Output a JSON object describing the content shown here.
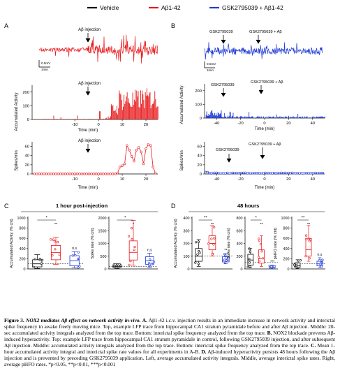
{
  "legend": [
    {
      "label": "Vehicle",
      "color": "#000000"
    },
    {
      "label": "Aβ1-42",
      "color": "#e8191c"
    },
    {
      "label": "GSK2795039 + Aβ1-42",
      "color": "#1f3ad6"
    }
  ],
  "colors": {
    "vehicle": "#000000",
    "abeta": "#e8191c",
    "gsk": "#1f3ad6"
  },
  "panels": {
    "a_label": "A",
    "b_label": "B",
    "c_label": "C",
    "d_label": "D",
    "a_top_annotation": "Aβ injection",
    "a_mid_annotation": "Aβ injection",
    "a_bottom_annotation": "Aβ injection",
    "b_top_annotation_1": "GSK2795039",
    "b_top_annotation_2": "GSK2795039 + Aβ",
    "b_mid_annotation_1": "GSK2795039",
    "b_mid_annotation_2": "GSK2795039 + Aβ",
    "b_bottom_annotation_1": "GSK2795039",
    "b_bottom_annotation_2": "GSK2795039 + Aβ",
    "scale_mv": "0.5mV",
    "scale_time": "1min",
    "ylabel_accum": "Accumulated Activity",
    "ylabel_spikes": "Spikes/min",
    "xlabel_time": "Time (min)",
    "c_title": "1 hour post-injection",
    "d_title": "48 hours",
    "c_ylabel_1": "Accumulated Activity (% cnt)",
    "c_ylabel_2": "Spike rate (% cnt)",
    "d_ylabel_1": "Accumulated Activity (% cnt)",
    "d_ylabel_2": "Spike rate (% cnt)",
    "d_ylabel_3": "pHFO rate (% cnt)"
  },
  "chart_data": [
    {
      "id": "A-mid",
      "type": "bar",
      "ylabel": "Accumulated Activity",
      "xlabel": "Time (min)",
      "xticks": [
        "-10",
        "0",
        "10",
        "20"
      ],
      "yticks": [
        "0",
        "100",
        "200"
      ],
      "ylim": [
        0,
        260
      ],
      "xlim": [
        -28,
        25
      ],
      "series_color": "#e8191c"
    },
    {
      "id": "A-bottom",
      "type": "line",
      "ylabel": "Spikes/min",
      "xlabel": "Time (min)",
      "xticks": [
        "-10",
        "0",
        "10",
        "20"
      ],
      "yticks": [
        "0",
        "20",
        "40",
        "60"
      ],
      "ylim": [
        0,
        70
      ],
      "xlim": [
        -28,
        25
      ],
      "x": [
        -27,
        -26,
        -25,
        -24,
        -23,
        -22,
        -21,
        -20,
        -19,
        -18,
        -17,
        -16,
        -15,
        -14,
        -13,
        -12,
        -11,
        -10,
        -9,
        -8,
        -7,
        -6,
        -5,
        -4,
        -3,
        -2,
        -1,
        0,
        1,
        2,
        3,
        4,
        5,
        6,
        7,
        8,
        9,
        10,
        11,
        12,
        13,
        14,
        15,
        16,
        17,
        18,
        19,
        20,
        21,
        22,
        23,
        24
      ],
      "y": [
        0,
        0,
        0,
        0,
        0,
        0,
        0,
        0,
        0,
        0,
        0,
        0,
        0,
        0,
        0,
        0,
        0,
        0,
        0,
        0,
        0,
        0,
        0,
        0,
        0,
        0,
        0,
        0,
        0,
        0,
        0,
        0,
        0,
        0,
        0,
        2,
        15,
        18,
        22,
        62,
        52,
        38,
        28,
        52,
        58,
        48,
        22,
        55,
        64,
        62,
        15,
        2
      ]
    },
    {
      "id": "B-mid",
      "type": "bar",
      "ylabel": "Accumulated Activity",
      "xlabel": "Time (min)",
      "xticks": [
        "-40",
        "-20",
        "0",
        "20",
        "40"
      ],
      "yticks": [
        "0",
        "100",
        "200"
      ],
      "ylim": [
        0,
        260
      ],
      "xlim": [
        -50,
        50
      ],
      "series_color": "#1f3ad6"
    },
    {
      "id": "B-bottom",
      "type": "line",
      "ylabel": "Spikes/min",
      "xlabel": "Time (min)",
      "xticks": [
        "-40",
        "-20",
        "0",
        "20",
        "40"
      ],
      "yticks": [
        "0",
        "20",
        "40",
        "60"
      ],
      "ylim": [
        0,
        70
      ],
      "xlim": [
        -50,
        50
      ]
    },
    {
      "id": "C-1",
      "type": "box",
      "ylabel": "Accumulated Activity (% cnt)",
      "yticks": [
        "0",
        "200",
        "400",
        "600",
        "800",
        "1000"
      ],
      "ylim": [
        0,
        1000
      ],
      "groups": [
        {
          "name": "Vehicle",
          "median": 100,
          "q1": 40,
          "q3": 180,
          "min": 10,
          "max": 280
        },
        {
          "name": "Aβ1-42",
          "median": 320,
          "q1": 180,
          "q3": 460,
          "min": 90,
          "max": 620
        },
        {
          "name": "GSK2795039 + Aβ1-42",
          "median": 160,
          "q1": 60,
          "q3": 260,
          "min": 20,
          "max": 340
        }
      ],
      "significance": [
        "**",
        "n.s",
        "*"
      ]
    },
    {
      "id": "C-2",
      "type": "box",
      "ylabel": "Spike rate (% cnt)",
      "yticks": [
        "0",
        "500",
        "1000",
        "1500",
        "2000"
      ],
      "ylim": [
        0,
        2000
      ],
      "groups": [
        {
          "name": "Vehicle",
          "median": 100,
          "q1": 60,
          "q3": 150,
          "min": 20,
          "max": 200
        },
        {
          "name": "Aβ1-42",
          "median": 650,
          "q1": 350,
          "q3": 1100,
          "min": 150,
          "max": 1900
        },
        {
          "name": "GSK2795039 + Aβ1-42",
          "median": 320,
          "q1": 180,
          "q3": 480,
          "min": 60,
          "max": 620
        }
      ],
      "significance": [
        "*",
        "n.s",
        "*"
      ]
    },
    {
      "id": "D-1",
      "type": "box",
      "ylabel": "Accumulated Activity (% cnt)",
      "yticks": [
        "0",
        "100",
        "200",
        "300",
        "400"
      ],
      "ylim": [
        0,
        400
      ],
      "groups": [
        {
          "name": "Vehicle",
          "median": 100,
          "q1": 60,
          "q3": 160,
          "min": 20,
          "max": 230
        },
        {
          "name": "Aβ1-42",
          "median": 200,
          "q1": 150,
          "q3": 260,
          "min": 100,
          "max": 340
        },
        {
          "name": "GSK2795039 + Aβ1-42",
          "median": 70,
          "q1": 55,
          "q3": 95,
          "min": 40,
          "max": 120
        }
      ],
      "significance": [
        "**",
        "**",
        "**"
      ]
    },
    {
      "id": "D-2",
      "type": "box",
      "ylabel": "Spike rate (% cnt)",
      "yticks": [
        "0",
        "200",
        "400",
        "600",
        "800"
      ],
      "ylim": [
        0,
        800
      ],
      "groups": [
        {
          "name": "Vehicle",
          "median": 140,
          "q1": 60,
          "q3": 230,
          "min": 20,
          "max": 320
        },
        {
          "name": "Aβ1-42",
          "median": 160,
          "q1": 90,
          "q3": 300,
          "min": 40,
          "max": 520
        },
        {
          "name": "GSK2795039 + Aβ1-42",
          "median": 30,
          "q1": 20,
          "q3": 45,
          "min": 10,
          "max": 60
        }
      ],
      "significance": [
        "**",
        "***",
        "*"
      ]
    },
    {
      "id": "D-3",
      "type": "box",
      "ylabel": "pHFO rate (% cnt)",
      "yticks": [
        "0",
        "200",
        "400",
        "600",
        "800",
        "1000"
      ],
      "ylim": [
        0,
        1000
      ],
      "groups": [
        {
          "name": "Vehicle",
          "median": 60,
          "q1": 30,
          "q3": 120,
          "min": 10,
          "max": 180
        },
        {
          "name": "Aβ1-42",
          "median": 380,
          "q1": 250,
          "q3": 600,
          "min": 150,
          "max": 850
        },
        {
          "name": "GSK2795039 + Aβ1-42",
          "median": 100,
          "q1": 60,
          "q3": 150,
          "min": 30,
          "max": 220
        }
      ],
      "significance": [
        "**",
        "n.s",
        "**"
      ]
    }
  ],
  "caption": {
    "label": "Figure 3.",
    "title": "NOX2 mediates Aβ effect on network activity in-vivo.",
    "a_label": "A.",
    "body_a": "Aβ1-42 i.c.v. injection results in an immediate increase in network activity and interictal spike frequency in awake freely moving mice. Top, example LFP trace from hippocampal CA1 stratum pyramidale before and after Aβ injection. Middle: 20-sec accumulated activity integrals analyzed from the top trace. Bottom: interictal spike frequency analyzed from the top trace.",
    "b_label": "B.",
    "body_b": "NOX2 blockade prevents Aβ-induced hyperactivity. Top: example LFP trace from hippocampal CA1 stratum pyramidale in control, following GSK2795039 injection, and after subsequent Aβ injection. Middle: accumulated activity integrals analyzed from the top trace. Bottom: interictal spike frequency analyzed from the top trace.",
    "c_label": "C.",
    "body_c": "Mean 1-hour accumulated activity integral and interictal spike rate values for all experiments in A-B.",
    "d_label": "D.",
    "body_d": "Aβ-induced hyperactivity persists 48 hours following the Aβ injection and is prevented by preceding GSK2795039 application. Left, average accumulated activity integrals. Middle, average interictal spike rates. Right, average pHFO rates. *p<0.05, **p<0.01, ***p<0.001"
  }
}
